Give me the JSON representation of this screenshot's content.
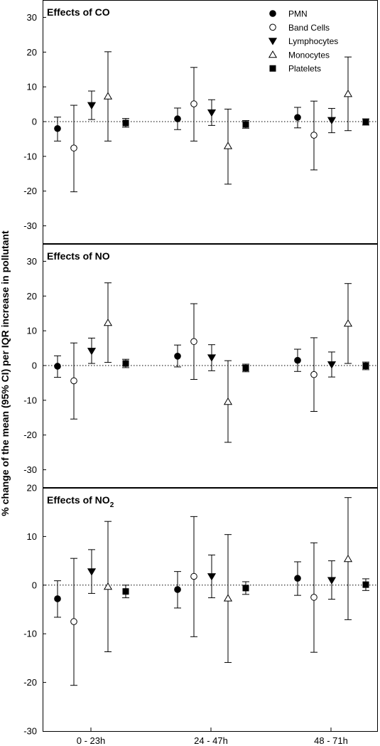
{
  "chart_data": {
    "type": "scatter",
    "ylabel": "% change of the mean (95% CI) per IQR increase in pollutant",
    "categories": [
      "0 - 23h",
      "24 - 47h",
      "48 - 71h"
    ],
    "legend": {
      "placement": "top-right",
      "entries": [
        {
          "name": "PMN",
          "marker": "filled-circle"
        },
        {
          "name": "Band Cells",
          "marker": "open-circle"
        },
        {
          "name": "Lymphocytes",
          "marker": "filled-triangle-down"
        },
        {
          "name": "Monocytes",
          "marker": "open-triangle-up"
        },
        {
          "name": "Platelets",
          "marker": "filled-square"
        }
      ]
    },
    "grid": false,
    "reference_line": 0,
    "panels": [
      {
        "title": "Effects of CO",
        "title_sub": "",
        "ylim": [
          -35,
          35
        ],
        "yticks": [
          -30,
          -20,
          -10,
          0,
          10,
          20,
          30
        ],
        "series": [
          {
            "name": "PMN",
            "values": [
              -2.0,
              0.8,
              1.2
            ],
            "lower": [
              -5.6,
              -2.3,
              -1.8
            ],
            "upper": [
              1.3,
              3.9,
              4.1
            ]
          },
          {
            "name": "Band Cells",
            "values": [
              -7.6,
              5.1,
              -3.9
            ],
            "lower": [
              -20.2,
              -5.6,
              -13.9
            ],
            "upper": [
              4.7,
              15.6,
              5.9
            ]
          },
          {
            "name": "Lymphocytes",
            "values": [
              4.7,
              2.6,
              0.4
            ],
            "lower": [
              0.6,
              -1.1,
              -3.2
            ],
            "upper": [
              8.8,
              6.3,
              3.8
            ]
          },
          {
            "name": "Monocytes",
            "values": [
              7.3,
              -7.0,
              8.0
            ],
            "lower": [
              -5.6,
              -18.0,
              -2.6
            ],
            "upper": [
              20.1,
              3.6,
              18.6
            ]
          },
          {
            "name": "Platelets",
            "values": [
              -0.4,
              -0.8,
              -0.1
            ],
            "lower": [
              -1.6,
              -1.9,
              -1.0
            ],
            "upper": [
              0.9,
              0.3,
              0.8
            ]
          }
        ]
      },
      {
        "title": "Effects of NO",
        "title_sub": "",
        "ylim": [
          -35,
          35
        ],
        "yticks": [
          -30,
          -20,
          -10,
          0,
          10,
          20,
          30
        ],
        "series": [
          {
            "name": "PMN",
            "values": [
              -0.2,
              2.7,
              1.5
            ],
            "lower": [
              -3.4,
              -0.4,
              -1.7
            ],
            "upper": [
              2.8,
              5.9,
              4.7
            ]
          },
          {
            "name": "Band Cells",
            "values": [
              -4.4,
              6.9,
              -2.6
            ],
            "lower": [
              -15.4,
              -4.0,
              -13.2
            ],
            "upper": [
              6.5,
              17.8,
              8.0
            ]
          },
          {
            "name": "Lymphocytes",
            "values": [
              4.2,
              2.3,
              0.3
            ],
            "lower": [
              0.6,
              -1.5,
              -3.3
            ],
            "upper": [
              7.9,
              6.0,
              3.9
            ]
          },
          {
            "name": "Monocytes",
            "values": [
              12.3,
              -10.4,
              12.1
            ],
            "lower": [
              0.9,
              -22.1,
              0.6
            ],
            "upper": [
              23.8,
              1.4,
              23.6
            ]
          },
          {
            "name": "Platelets",
            "values": [
              0.6,
              -0.7,
              -0.1
            ],
            "lower": [
              -0.6,
              -1.8,
              -1.2
            ],
            "upper": [
              1.8,
              0.4,
              1.0
            ]
          }
        ]
      },
      {
        "title": "Effects of NO",
        "title_sub": "2",
        "ylim": [
          -30,
          20
        ],
        "yticks": [
          -30,
          -20,
          -10,
          0,
          10,
          20
        ],
        "series": [
          {
            "name": "PMN",
            "values": [
              -2.8,
              -0.9,
              1.4
            ],
            "lower": [
              -6.6,
              -4.7,
              -2.1
            ],
            "upper": [
              0.9,
              2.8,
              4.8
            ]
          },
          {
            "name": "Band Cells",
            "values": [
              -7.5,
              1.8,
              -2.5
            ],
            "lower": [
              -20.6,
              -10.6,
              -13.8
            ],
            "upper": [
              5.5,
              14.1,
              8.7
            ]
          },
          {
            "name": "Lymphocytes",
            "values": [
              2.8,
              1.8,
              1.0
            ],
            "lower": [
              -1.7,
              -2.6,
              -2.9
            ],
            "upper": [
              7.3,
              6.2,
              5.0
            ]
          },
          {
            "name": "Monocytes",
            "values": [
              -0.3,
              -2.7,
              5.4
            ],
            "lower": [
              -13.7,
              -15.9,
              -7.1
            ],
            "upper": [
              13.1,
              10.4,
              18.0
            ]
          },
          {
            "name": "Platelets",
            "values": [
              -1.3,
              -0.6,
              0.1
            ],
            "lower": [
              -2.6,
              -1.9,
              -1.1
            ],
            "upper": [
              0.0,
              0.7,
              1.3
            ]
          }
        ]
      }
    ]
  }
}
